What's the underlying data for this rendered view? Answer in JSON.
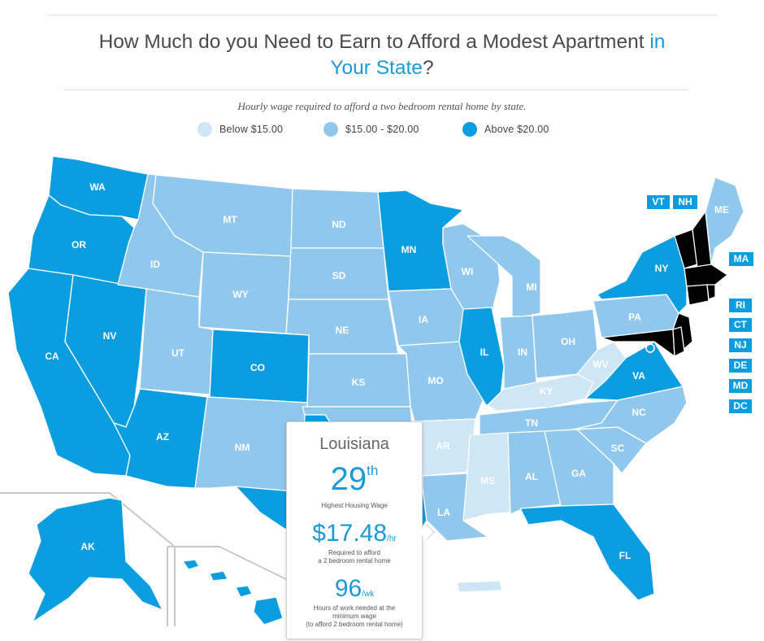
{
  "title": {
    "main": "How Much do you Need to Earn to Afford a Modest Apartment",
    "highlight1": "in",
    "highlight2": "Your State",
    "end": "?"
  },
  "subtitle": "Hourly wage required to afford a two bedroom rental home by state.",
  "legend": [
    {
      "label": "Below $15.00",
      "color": "#cfe6f6"
    },
    {
      "label": "$15.00 - $20.00",
      "color": "#8fc8ec"
    },
    {
      "label": "Above $20.00",
      "color": "#0a9ee0"
    }
  ],
  "tiers": {
    "low": "#cfe6f6",
    "mid": "#8fc8ec",
    "high": "#0a9ee0"
  },
  "states": {
    "WA": "high",
    "OR": "high",
    "CA": "high",
    "NV": "high",
    "AZ": "high",
    "ID": "mid",
    "MT": "mid",
    "WY": "mid",
    "UT": "mid",
    "CO": "high",
    "NM": "mid",
    "ND": "mid",
    "SD": "mid",
    "NE": "mid",
    "KS": "mid",
    "OK": "mid",
    "TX": "high",
    "MN": "high",
    "IA": "mid",
    "MO": "mid",
    "AR": "low",
    "LA": "mid",
    "WI": "mid",
    "IL": "high",
    "MI": "mid",
    "IN": "mid",
    "OH": "mid",
    "KY": "low",
    "TN": "mid",
    "MS": "low",
    "AL": "mid",
    "GA": "mid",
    "FL": "high",
    "SC": "mid",
    "NC": "mid",
    "VA": "high",
    "WV": "low",
    "PA": "mid",
    "NY": "high",
    "ME": "mid",
    "AK": "high",
    "HI": "high",
    "PR": "low"
  },
  "northeast_tags": [
    "VT",
    "NH",
    "MA",
    "RI",
    "CT",
    "NJ",
    "DE",
    "MD",
    "DC"
  ],
  "tooltip": {
    "state": "Louisiana",
    "rank": "29",
    "rank_suffix": "th",
    "rank_caption": "Highest Housing Wage",
    "wage": "$17.48",
    "wage_unit": "/hr",
    "wage_caption_1": "Required to afford",
    "wage_caption_2": "a 2 bedroom rental home",
    "hours": "96",
    "hours_unit": "/wk",
    "hours_caption_1": "Hours of work needed at the",
    "hours_caption_2": "minimum wage",
    "hours_caption_3": "(to afford 2 bedroom rental home)"
  }
}
